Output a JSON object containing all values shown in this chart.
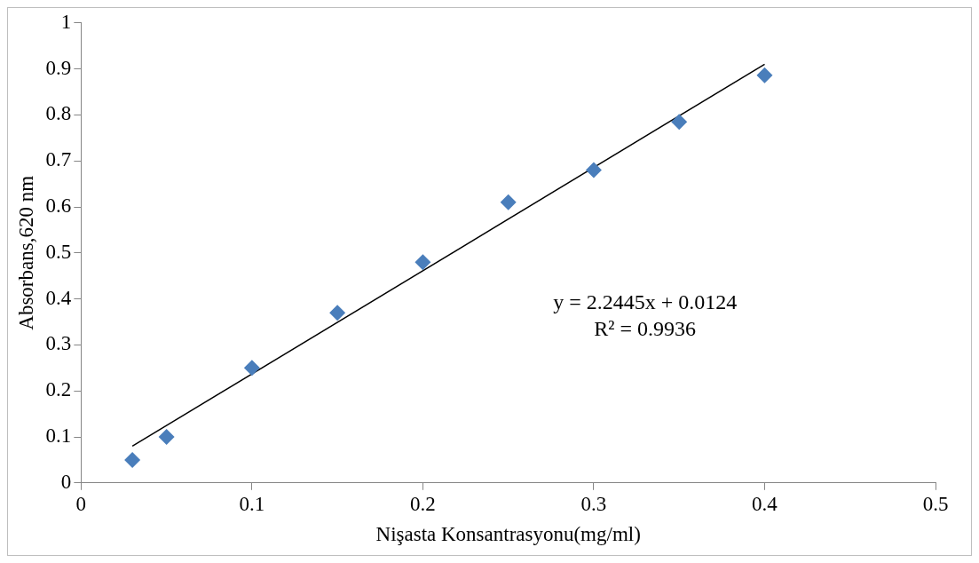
{
  "chart_data": {
    "type": "scatter",
    "xlabel": "Nişasta Konsantrasyonu(mg/ml)",
    "ylabel": "Absorbans,620 nm",
    "series": [
      {
        "color": "#4a7ebb",
        "marker": "diamond",
        "x": [
          0.03,
          0.05,
          0.1,
          0.15,
          0.2,
          0.25,
          0.3,
          0.35,
          0.4
        ],
        "values": [
          0.05,
          0.1,
          0.25,
          0.37,
          0.48,
          0.61,
          0.68,
          0.785,
          0.886
        ]
      },
      {
        "type": "line",
        "color": "#000000",
        "marker": "none",
        "line_style": "solid",
        "x": [
          0.03,
          0.4
        ],
        "values": [
          0.08,
          0.91
        ]
      }
    ],
    "xlim": [
      0,
      0.5
    ],
    "xticks": [
      0,
      0.1,
      0.2,
      0.3,
      0.4,
      0.5
    ],
    "ylim": [
      0,
      1
    ],
    "yticks": [
      0,
      0.1,
      0.2,
      0.3,
      0.4,
      0.5,
      0.6,
      0.7,
      0.8,
      0.9,
      1
    ],
    "grid": false,
    "legend": false,
    "annotations": [
      "y = 2.2445x + 0.0124",
      "R² = 0.9936"
    ]
  }
}
